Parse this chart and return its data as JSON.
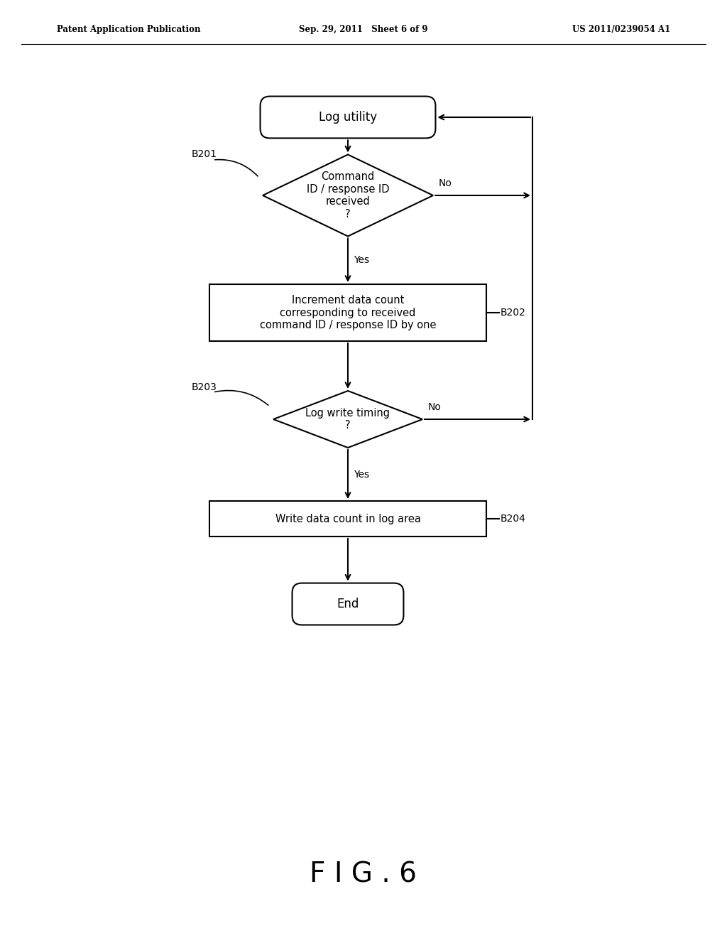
{
  "bg_color": "#ffffff",
  "header_left": "Patent Application Publication",
  "header_center": "Sep. 29, 2011   Sheet 6 of 9",
  "header_right": "US 2011/0239054 A1",
  "fig_label": "F I G . 6",
  "node_start_label": "Log utility",
  "node_B201_label": "Command\nID / response ID\nreceived\n?",
  "node_B202_label": "Increment data count\ncorresponding to received\ncommand ID / response ID by one",
  "node_B203_label": "Log write timing\n?",
  "node_B204_label": "Write data count in log area",
  "node_end_label": "End",
  "label_B201": "B201",
  "label_B202": "B202",
  "label_B203": "B203",
  "label_B204": "B204",
  "yes_label": "Yes",
  "no_label": "No",
  "font_size_body": 10.5,
  "font_size_header": 8.5,
  "font_size_fig": 28,
  "font_size_label": 10
}
